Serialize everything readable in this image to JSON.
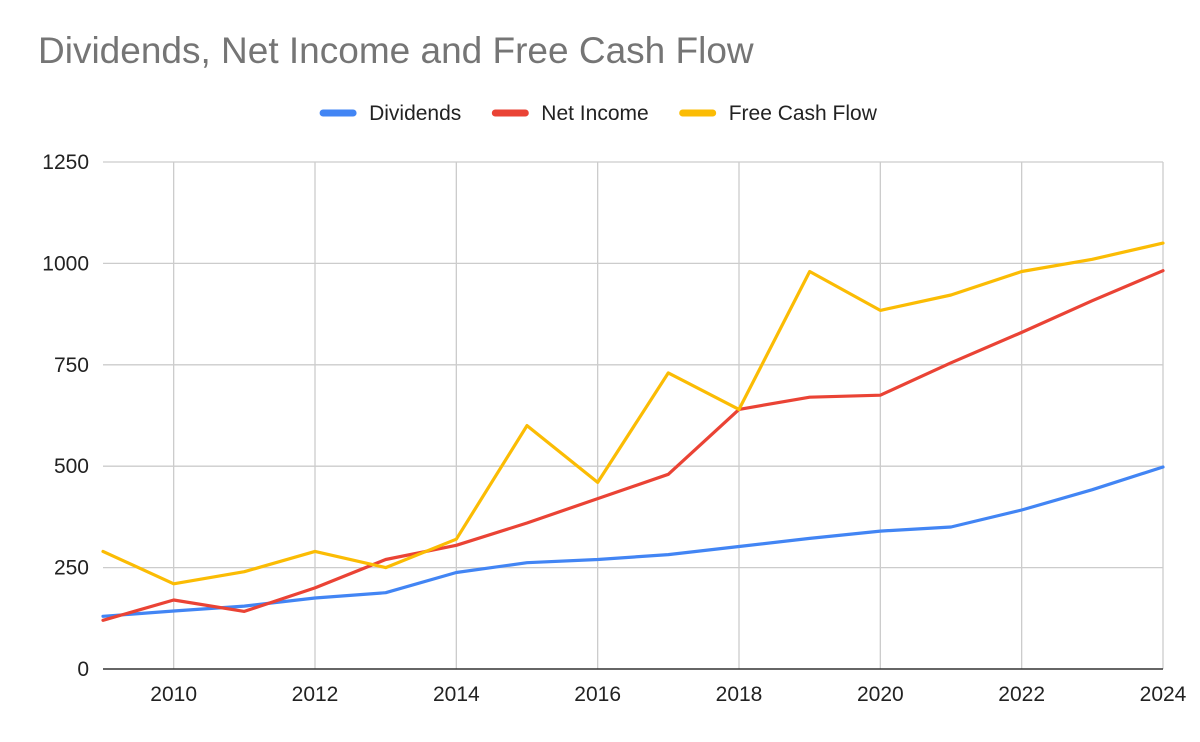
{
  "chart_data": {
    "type": "line",
    "title": "Dividends, Net Income and Free Cash Flow",
    "xlabel": "",
    "ylabel": "",
    "x": [
      2009,
      2010,
      2011,
      2012,
      2013,
      2014,
      2015,
      2016,
      2017,
      2018,
      2019,
      2020,
      2021,
      2022,
      2023,
      2024
    ],
    "xlim": [
      2009,
      2024
    ],
    "ylim": [
      0,
      1250
    ],
    "x_ticks": [
      2010,
      2012,
      2014,
      2016,
      2018,
      2020,
      2022,
      2024
    ],
    "y_ticks": [
      0,
      250,
      500,
      750,
      1000,
      1250
    ],
    "grid": true,
    "legend_position": "top",
    "series": [
      {
        "name": "Dividends",
        "color": "#4285F4",
        "values": [
          130,
          143,
          155,
          175,
          188,
          238,
          262,
          270,
          282,
          302,
          322,
          340,
          350,
          392,
          442,
          498
        ]
      },
      {
        "name": "Net Income",
        "color": "#EA4335",
        "values": [
          120,
          170,
          142,
          200,
          270,
          305,
          360,
          420,
          480,
          640,
          670,
          675,
          755,
          830,
          908,
          982
        ]
      },
      {
        "name": "Free Cash Flow",
        "color": "#FBBC04",
        "values": [
          290,
          210,
          240,
          290,
          250,
          320,
          600,
          460,
          730,
          640,
          980,
          884,
          922,
          980,
          1010,
          1050
        ]
      }
    ]
  }
}
